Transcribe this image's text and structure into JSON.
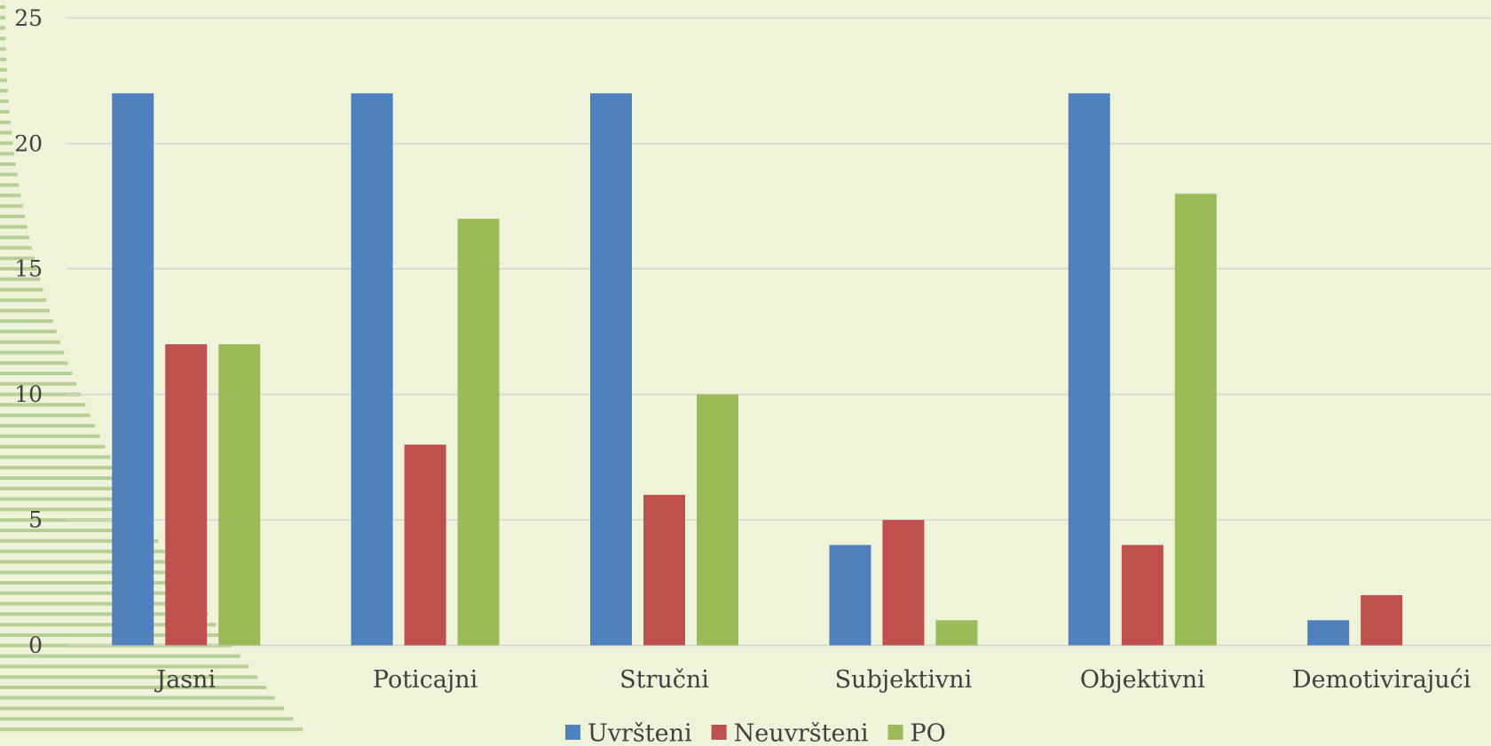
{
  "chart_data": {
    "type": "bar",
    "categories": [
      "Jasni",
      "Poticajni",
      "Stručni",
      "Subjektivni",
      "Objektivni",
      "Demotivirajući"
    ],
    "series": [
      {
        "name": "Uvršteni",
        "color": "#4f81bd",
        "values": [
          22,
          22,
          22,
          4,
          22,
          1
        ]
      },
      {
        "name": "Neuvršteni",
        "color": "#c0504d",
        "values": [
          12,
          8,
          6,
          5,
          4,
          2
        ]
      },
      {
        "name": "PO",
        "color": "#9bbb59",
        "values": [
          12,
          17,
          10,
          1,
          18,
          0
        ]
      }
    ],
    "ylim": [
      0,
      25
    ],
    "yticks": [
      0,
      5,
      10,
      15,
      20,
      25
    ],
    "grid": true,
    "legend": "bottom"
  }
}
